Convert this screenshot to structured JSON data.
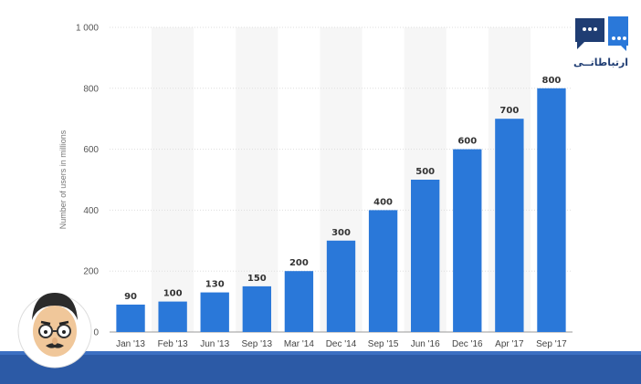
{
  "chart_data": {
    "type": "bar",
    "categories": [
      "Jan '13",
      "Feb '13",
      "Jun '13",
      "Sep '13",
      "Mar '14",
      "Dec '14",
      "Sep '15",
      "Jun '16",
      "Dec '16",
      "Apr '17",
      "Sep '17"
    ],
    "values": [
      90,
      100,
      130,
      150,
      200,
      300,
      400,
      500,
      600,
      700,
      800
    ],
    "data_labels": [
      "90",
      "100",
      "130",
      "150",
      "200",
      "300",
      "400",
      "500",
      "600",
      "700",
      "800"
    ],
    "ylabel": "Number of users in millions",
    "ylim": [
      0,
      1000
    ],
    "yticks": [
      0,
      200,
      400,
      600,
      800,
      1000
    ],
    "ytick_labels": [
      "0",
      "200",
      "400",
      "600",
      "800",
      "1 000"
    ],
    "grid": true,
    "bar_color": "#2a78d9"
  },
  "branding": {
    "logo_text": "ارتباطاتــی",
    "logo_color": "#1f3d73",
    "footer_color": "#2c5aa6"
  }
}
